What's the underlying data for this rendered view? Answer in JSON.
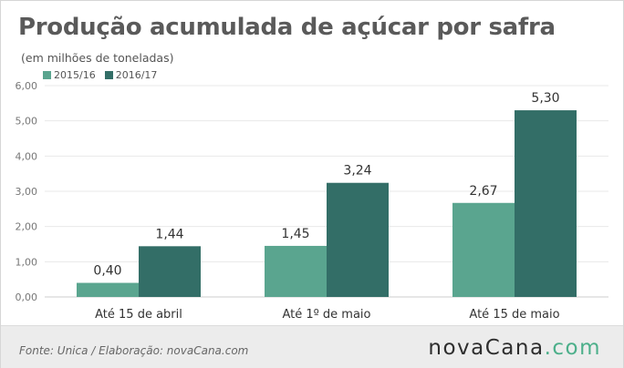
{
  "header": {
    "title": "Produção acumulada de açúcar por safra",
    "subtitle": "(em milhões de toneladas)"
  },
  "footer": {
    "source": "Fonte:  Unica  / Elaboração:  novaCana.com",
    "logo_main": "novaCana",
    "logo_tld": ".com"
  },
  "colors": {
    "series_2015_16": "#5aa58f",
    "series_2016_17": "#336e67",
    "axis_text": "#777777",
    "grid": "#e8e8e8"
  },
  "chart_data": {
    "type": "bar",
    "title": "Produção acumulada de açúcar por safra",
    "subtitle": "(em milhões de toneladas)",
    "categories": [
      "Até 15 de abril",
      "Até 1º de maio",
      "Até 15 de maio"
    ],
    "series": [
      {
        "name": "2015/16",
        "values": [
          0.4,
          1.45,
          2.67
        ],
        "labels": [
          "0,40",
          "1,45",
          "2,67"
        ]
      },
      {
        "name": "2016/17",
        "values": [
          1.44,
          3.24,
          5.3
        ],
        "labels": [
          "1,44",
          "3,24",
          "5,30"
        ]
      }
    ],
    "yticks": [
      "0,00",
      "1,00",
      "2,00",
      "3,00",
      "4,00",
      "5,00",
      "6,00"
    ],
    "ylim": [
      0,
      6
    ],
    "xlabel": "",
    "ylabel": "",
    "grid": true,
    "legend": "top-left"
  }
}
